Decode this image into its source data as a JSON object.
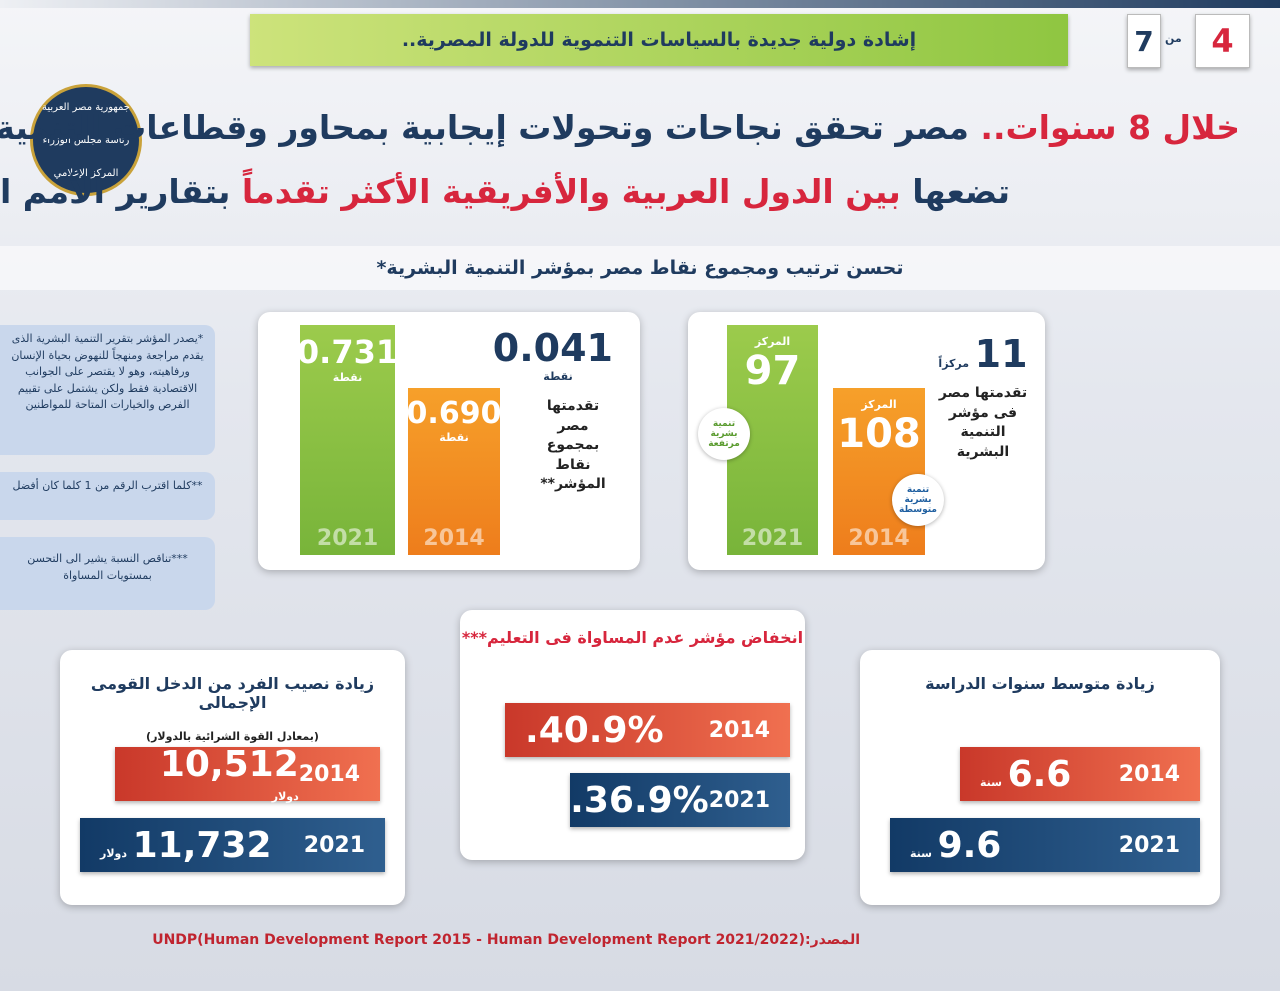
{
  "header": {
    "banner": "إشادة دولية جديدة بالسياسات التنموية للدولة المصرية..",
    "page": "4",
    "of": "من",
    "total": "7"
  },
  "logo": {
    "line1": "جمهورية مصر العربية",
    "line2": "رئاسة مجلس الوزراء",
    "line3": "المركز الإعلامي"
  },
  "title": {
    "line1_highlight": "خلال 8 سنوات..",
    "line1": "مصر تحقق نجاحات وتحولات إيجابية بمحاور وقطاعات التنمية البشرية",
    "line2_start": "تضعها",
    "line2_highlight": "بين الدول العربية والأفريقية الأكثر تقدماً",
    "line2_end": "بتقارير الأمم المتحدة"
  },
  "subtitle": "تحسن ترتيب ومجموع نقاط مصر بمؤشر التنمية البشرية*",
  "notes": [
    "*يصدر المؤشر بتقرير التنمية البشرية الذى يقدم مراجعة ومنهجاً للنهوض بحياة الإنسان ورفاهيته، وهو لا يقتصر على الجوانب الاقتصادية فقط ولكن يشتمل على تقييم الفرص والخيارات المتاحة للمواطنين",
    "**كلما اقترب الرقم من 1 كلما كان أفضل",
    "***تناقص النسبة يشير الى التحسن بمستويات المساواة"
  ],
  "rank_panel": {
    "value": "11",
    "unit": "مركزاً",
    "text": "تقدمتها مصر فى مؤشر التنمية البشرية",
    "bars": [
      {
        "year": "2021",
        "label": "المركز",
        "value": "97",
        "badge": "تنمية بشرية مرتفعة"
      },
      {
        "year": "2014",
        "label": "المركز",
        "value": "108",
        "badge": "تنمية بشرية متوسطة"
      }
    ]
  },
  "score_panel": {
    "value": "0.041",
    "unit": "نقطة",
    "text": "تقدمتها مصر بمجموع نقاط المؤشر**",
    "bars": [
      {
        "year": "2021",
        "value": "0.731",
        "unit": "نقطة"
      },
      {
        "year": "2014",
        "value": "0.690",
        "unit": "نقطة"
      }
    ]
  },
  "schooling": {
    "title": "زيادة متوسط سنوات الدراسة",
    "rows": [
      {
        "year": "2014",
        "value": "6.6",
        "unit": "سنة"
      },
      {
        "year": "2021",
        "value": "9.6",
        "unit": "سنة"
      }
    ]
  },
  "inequality": {
    "title": "انخفاض مؤشر عدم المساواة فى التعليم***",
    "rows": [
      {
        "year": "2014",
        "value": "40.9%."
      },
      {
        "year": "2021",
        "value": "36.9%."
      }
    ]
  },
  "income": {
    "title": "زيادة نصيب الفرد من الدخل القومى الإجمالى",
    "subtitle": "(بمعادل القوة الشرائية بالدولار)",
    "rows": [
      {
        "year": "2014",
        "value": "10,512",
        "unit": "دولار"
      },
      {
        "year": "2021",
        "value": "11,732",
        "unit": "دولار"
      }
    ]
  },
  "source": {
    "label": "المصدر:",
    "text": "UNDP(Human Development Report 2015 - Human Development Report 2021/2022)"
  }
}
